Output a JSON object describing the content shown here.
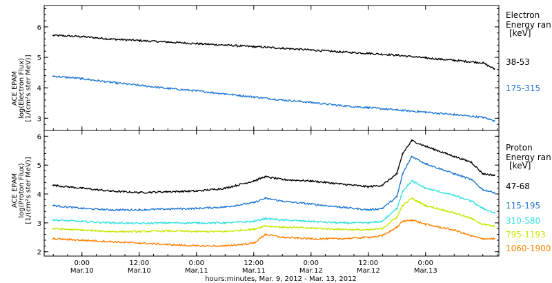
{
  "chart_data": [
    {
      "type": "scatter",
      "ylabel": [
        "ACE EPAM",
        "log(Electron Flux)",
        "[1/(cm²s ster MeV)]"
      ],
      "ylim": [
        2.6,
        6.7
      ],
      "yticks": [
        3,
        4,
        5,
        6
      ],
      "legend_title": [
        "Electron",
        "Energy ran",
        "[keV]"
      ],
      "series": [
        {
          "name": "38-53",
          "color": "#000000",
          "x": [
            -0.25,
            0,
            0.25,
            0.5,
            0.75,
            1,
            1.25,
            1.5,
            1.75,
            2,
            2.25,
            2.5,
            2.75,
            3,
            3.25,
            3.5,
            3.6
          ],
          "values": [
            5.72,
            5.68,
            5.6,
            5.55,
            5.5,
            5.45,
            5.4,
            5.35,
            5.3,
            5.24,
            5.18,
            5.13,
            5.07,
            4.98,
            4.9,
            4.82,
            4.62
          ]
        },
        {
          "name": "175-315",
          "color": "#1f77d4",
          "x": [
            -0.25,
            0,
            0.25,
            0.5,
            0.75,
            1,
            1.25,
            1.5,
            1.75,
            2,
            2.25,
            2.5,
            2.75,
            3,
            3.25,
            3.5,
            3.6
          ],
          "values": [
            4.38,
            4.3,
            4.18,
            4.08,
            3.98,
            3.9,
            3.8,
            3.7,
            3.6,
            3.52,
            3.42,
            3.35,
            3.27,
            3.2,
            3.12,
            3.03,
            2.92
          ]
        }
      ]
    },
    {
      "type": "scatter",
      "ylabel": [
        "ACE EPAM",
        "log(Proton Flux)",
        "[1/(cm²s ster MeV)]"
      ],
      "ylim": [
        1.85,
        6.2
      ],
      "yticks": [
        2,
        3,
        4,
        5,
        6
      ],
      "legend_title": [
        "Proton",
        "Energy ran",
        "[keV]"
      ],
      "series": [
        {
          "name": "47-68",
          "color": "#000000",
          "x": [
            -0.25,
            0,
            0.25,
            0.5,
            0.75,
            1,
            1.25,
            1.5,
            1.6,
            1.75,
            2,
            2.25,
            2.5,
            2.62,
            2.75,
            2.8,
            2.88,
            3,
            3.25,
            3.4,
            3.5,
            3.6
          ],
          "values": [
            4.3,
            4.2,
            4.1,
            4.05,
            4.08,
            4.1,
            4.2,
            4.45,
            4.6,
            4.5,
            4.45,
            4.35,
            4.25,
            4.3,
            4.7,
            5.4,
            5.85,
            5.65,
            5.3,
            5.1,
            4.7,
            4.65
          ]
        },
        {
          "name": "115-195",
          "color": "#1f77d4",
          "x": [
            -0.25,
            0,
            0.25,
            0.5,
            0.75,
            1,
            1.25,
            1.5,
            1.6,
            1.75,
            2,
            2.25,
            2.5,
            2.62,
            2.75,
            2.8,
            2.88,
            3,
            3.25,
            3.4,
            3.5,
            3.6
          ],
          "values": [
            3.6,
            3.5,
            3.45,
            3.45,
            3.48,
            3.5,
            3.55,
            3.7,
            3.85,
            3.75,
            3.65,
            3.55,
            3.45,
            3.5,
            3.9,
            4.7,
            5.3,
            5.05,
            4.7,
            4.5,
            4.15,
            4.05
          ]
        },
        {
          "name": "310-580",
          "color": "#33e0e0",
          "x": [
            -0.25,
            0,
            0.25,
            0.5,
            0.75,
            1,
            1.25,
            1.5,
            1.6,
            1.75,
            2,
            2.25,
            2.5,
            2.62,
            2.75,
            2.8,
            2.88,
            3,
            3.25,
            3.4,
            3.5,
            3.6
          ],
          "values": [
            3.1,
            3.05,
            3.0,
            2.98,
            3.0,
            3.0,
            3.0,
            3.05,
            3.15,
            3.1,
            3.05,
            3.0,
            3.0,
            3.05,
            3.5,
            4.1,
            4.45,
            4.2,
            3.95,
            3.75,
            3.5,
            3.35
          ]
        },
        {
          "name": "795-1193",
          "color": "#c8e600",
          "x": [
            -0.25,
            0,
            0.25,
            0.5,
            0.75,
            1,
            1.25,
            1.5,
            1.6,
            1.75,
            2,
            2.25,
            2.5,
            2.62,
            2.75,
            2.8,
            2.88,
            3,
            3.25,
            3.4,
            3.5,
            3.6
          ],
          "values": [
            2.8,
            2.75,
            2.7,
            2.7,
            2.72,
            2.7,
            2.7,
            2.78,
            2.9,
            2.85,
            2.82,
            2.78,
            2.75,
            2.8,
            3.2,
            3.6,
            3.85,
            3.6,
            3.35,
            3.15,
            2.95,
            2.88
          ]
        },
        {
          "name": "1060-1900",
          "color": "#ff8000",
          "x": [
            -0.25,
            0,
            0.25,
            0.5,
            0.75,
            1,
            1.25,
            1.5,
            1.6,
            1.75,
            2,
            2.25,
            2.5,
            2.62,
            2.75,
            2.8,
            2.88,
            3,
            3.25,
            3.4,
            3.5,
            3.6
          ],
          "values": [
            2.45,
            2.4,
            2.35,
            2.3,
            2.25,
            2.2,
            2.2,
            2.3,
            2.6,
            2.5,
            2.45,
            2.45,
            2.5,
            2.55,
            2.85,
            3.05,
            3.1,
            2.95,
            2.75,
            2.55,
            2.45,
            2.45
          ]
        }
      ]
    }
  ],
  "x_axis": {
    "xlim": [
      -0.33,
      3.64
    ],
    "ticks": [
      {
        "value": 0,
        "time": "0:00",
        "date": "Mar.10"
      },
      {
        "value": 0.5,
        "time": "12:00",
        "date": "Mar.10"
      },
      {
        "value": 1,
        "time": "0:00",
        "date": "Mar.11"
      },
      {
        "value": 1.5,
        "time": "12:00",
        "date": "Mar.11"
      },
      {
        "value": 2,
        "time": "0:00",
        "date": "Mar.12"
      },
      {
        "value": 2.5,
        "time": "12:00",
        "date": "Mar.12"
      },
      {
        "value": 3,
        "time": "0:00",
        "date": "Mar.13"
      }
    ],
    "xlabel": "hours:minutes, Mar.  9, 2012 - Mar. 13, 2012"
  }
}
